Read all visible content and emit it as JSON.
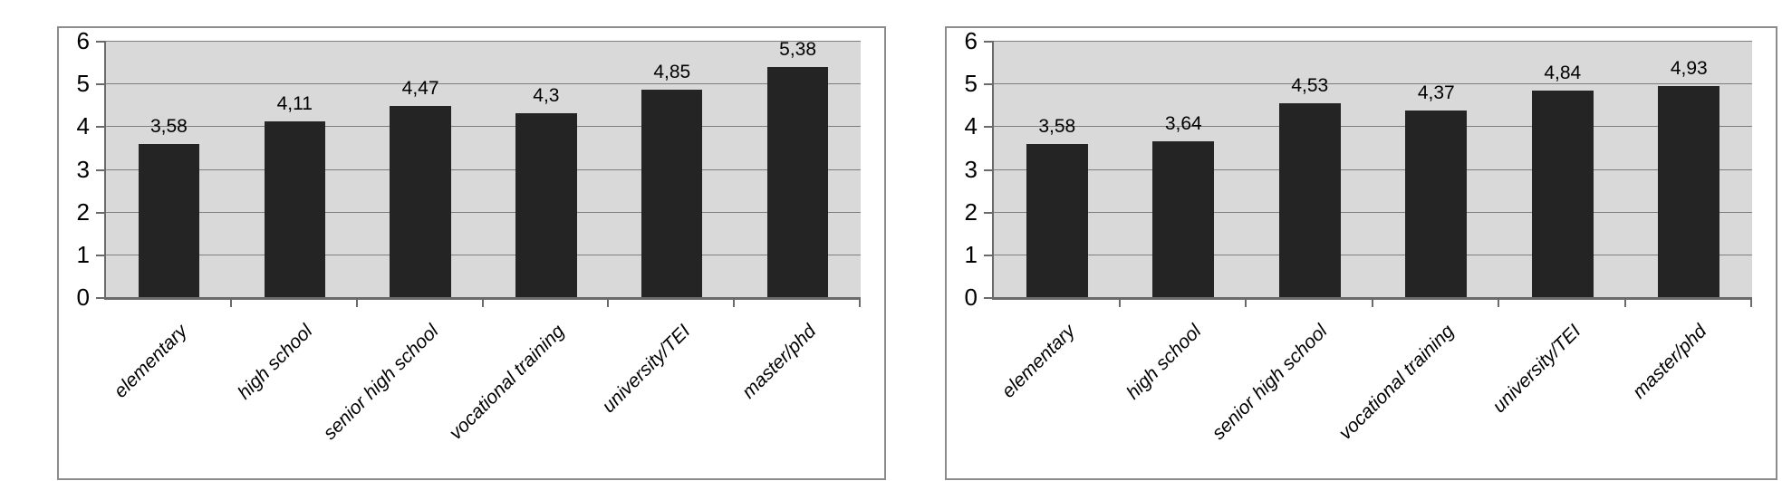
{
  "colors": {
    "bar": "#242424",
    "plot_background": "#d9d9d9",
    "gridline": "#7f7f7f",
    "axis": "#6a6a6a",
    "frame_border": "#8c8c8c",
    "page_background": "#ffffff",
    "text": "#000000"
  },
  "chart_data": [
    {
      "type": "bar",
      "position": "left",
      "title": "",
      "xlabel": "",
      "ylabel": "",
      "categories": [
        "elementary",
        "high school",
        "senior high school",
        "vocational training",
        "university/TEI",
        "master/phd"
      ],
      "values": [
        3.58,
        4.11,
        4.47,
        4.3,
        4.85,
        5.38
      ],
      "value_labels": [
        "3,58",
        "4,11",
        "4,47",
        "4,3",
        "4,85",
        "5,38"
      ],
      "ylim": [
        0,
        6
      ],
      "yticks": [
        0,
        1,
        2,
        3,
        4,
        5,
        6
      ],
      "grid": true,
      "legend": "none",
      "category_label_style": "italic, rotated 45deg",
      "decimal_separator": ","
    },
    {
      "type": "bar",
      "position": "right",
      "title": "",
      "xlabel": "",
      "ylabel": "",
      "categories": [
        "elementary",
        "high school",
        "senior high school",
        "vocational training",
        "university/TEI",
        "master/phd"
      ],
      "values": [
        3.58,
        3.64,
        4.53,
        4.37,
        4.84,
        4.93
      ],
      "value_labels": [
        "3,58",
        "3,64",
        "4,53",
        "4,37",
        "4,84",
        "4,93"
      ],
      "ylim": [
        0,
        6
      ],
      "yticks": [
        0,
        1,
        2,
        3,
        4,
        5,
        6
      ],
      "grid": true,
      "legend": "none",
      "category_label_style": "italic, rotated 45deg",
      "decimal_separator": ","
    }
  ]
}
